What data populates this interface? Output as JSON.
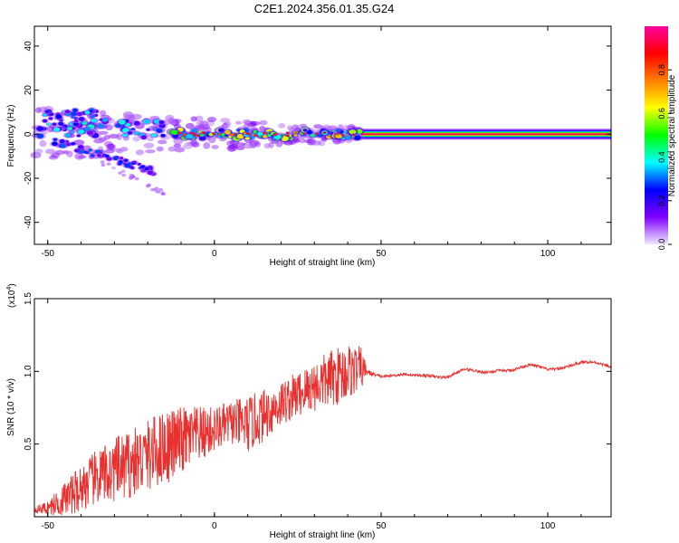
{
  "title": "C2E1.2024.356.01.35.G24",
  "chart_data": [
    {
      "type": "heatmap",
      "xlabel": "Height of straight line (km)",
      "ylabel": "Frequency (Hz)",
      "xlim": [
        -54,
        119
      ],
      "ylim": [
        -50,
        49
      ],
      "xticks": [
        "-50",
        "0",
        "50",
        "100"
      ],
      "yticks": [
        "-40",
        "-20",
        "0",
        "20",
        "40"
      ],
      "colorbar": {
        "label": "Normalized spectral amplitude",
        "range": [
          0.0,
          1.0
        ],
        "ticks": [
          "0.0",
          "0.2",
          "0.4",
          "0.6",
          "0.8"
        ],
        "colors": [
          "#f0e8ff",
          "#8000ff",
          "#0000ff",
          "#00ffff",
          "#00ff00",
          "#ffff00",
          "#ff8000",
          "#ff0000",
          "#ff00a0"
        ]
      },
      "ridge": {
        "x_start": 44,
        "x_end": 119,
        "frequency": 0,
        "amplitude": 1.0
      },
      "scatter_region": {
        "x_start": -54,
        "x_end": 44,
        "frequency_min": -28,
        "frequency_max": 14
      }
    },
    {
      "type": "line",
      "xlabel": "Height of straight line (km)",
      "ylabel": "SNR (10 * v/v)",
      "scale_label": "(x10",
      "scale_exponent": "4",
      "xlim": [
        -54,
        119
      ],
      "ylim": [
        0,
        1.5
      ],
      "xticks": [
        "-50",
        "0",
        "50",
        "100"
      ],
      "yticks": [
        "0.5",
        "1.0",
        "1.5"
      ],
      "color": "#e8302e",
      "series": [
        {
          "x": [
            -54,
            -50,
            -45,
            -40,
            -35,
            -30,
            -25,
            -20,
            -15,
            -10,
            -5,
            0,
            5,
            10,
            15,
            20,
            25,
            30,
            35,
            40,
            44,
            46,
            50,
            55,
            60,
            65,
            70,
            75,
            80,
            85,
            90,
            95,
            100,
            105,
            110,
            115,
            119
          ],
          "values": [
            0.05,
            0.06,
            0.12,
            0.2,
            0.27,
            0.32,
            0.36,
            0.42,
            0.48,
            0.52,
            0.56,
            0.6,
            0.65,
            0.63,
            0.7,
            0.78,
            0.84,
            0.9,
            0.95,
            1.0,
            1.02,
            1.0,
            0.98,
            0.97,
            0.96,
            0.98,
            0.97,
            1.0,
            0.99,
            1.02,
            1.01,
            1.03,
            1.02,
            1.04,
            1.05,
            1.05,
            1.04
          ],
          "noise_amplitude": [
            0.02,
            0.05,
            0.12,
            0.16,
            0.2,
            0.22,
            0.24,
            0.25,
            0.26,
            0.24,
            0.2,
            0.16,
            0.15,
            0.2,
            0.18,
            0.16,
            0.16,
            0.18,
            0.2,
            0.2,
            0.15,
            0.02,
            0.01,
            0.01,
            0.01,
            0.01,
            0.01,
            0.01,
            0.01,
            0.01,
            0.01,
            0.01,
            0.01,
            0.01,
            0.01,
            0.01,
            0.01
          ]
        }
      ]
    }
  ]
}
